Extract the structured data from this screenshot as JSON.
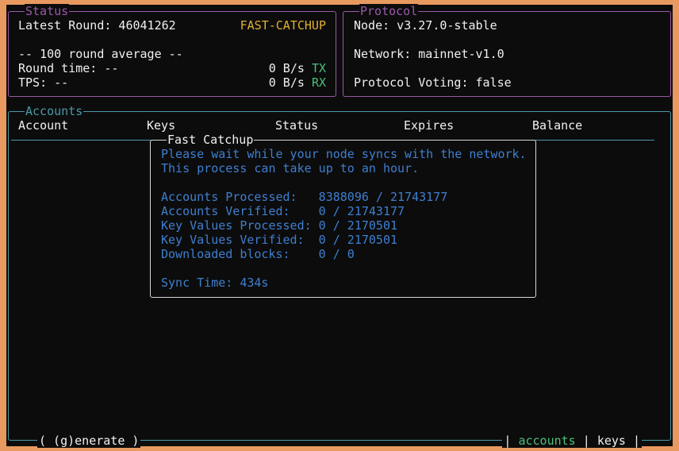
{
  "status": {
    "title": "Status",
    "latest_round": "Latest Round: 46041262",
    "state": "FAST-CATCHUP",
    "average_heading": "-- 100 round average --",
    "round_time": "Round time: --",
    "tps": "TPS: --",
    "tx_rate": "0 B/s",
    "tx_label": "TX",
    "rx_rate": "0 B/s",
    "rx_label": "RX"
  },
  "protocol": {
    "title": "Protocol",
    "node": "Node: v3.27.0-stable",
    "network": "Network: mainnet-v1.0",
    "voting": "Protocol Voting: false"
  },
  "accounts": {
    "title": "Accounts",
    "columns": [
      "Account",
      "Keys",
      "Status",
      "Expires",
      "Balance"
    ],
    "footer_generate": "( (g)enerate )",
    "tabs": [
      "accounts",
      "keys"
    ]
  },
  "fast_catchup": {
    "title": "Fast Catchup",
    "message_1": "Please wait while your node syncs with the network.",
    "message_2": "This process can take up to an hour.",
    "rows": [
      "Accounts Processed:   8388096 / 21743177",
      "Accounts Verified:    0 / 21743177",
      "Key Values Processed: 0 / 2170501",
      "Key Values Verified:  0 / 2170501",
      "Downloaded blocks:    0 / 0"
    ],
    "sync_time": "Sync Time: 434s"
  },
  "colors": {
    "frame": "#e8995f",
    "background": "#0c0c0c",
    "status_border": "#9a5aa8",
    "accounts_border": "#4a9aa8",
    "catchup_text": "#3f7fd0",
    "state": "#e0b030",
    "active_tab": "#4cc07a"
  }
}
